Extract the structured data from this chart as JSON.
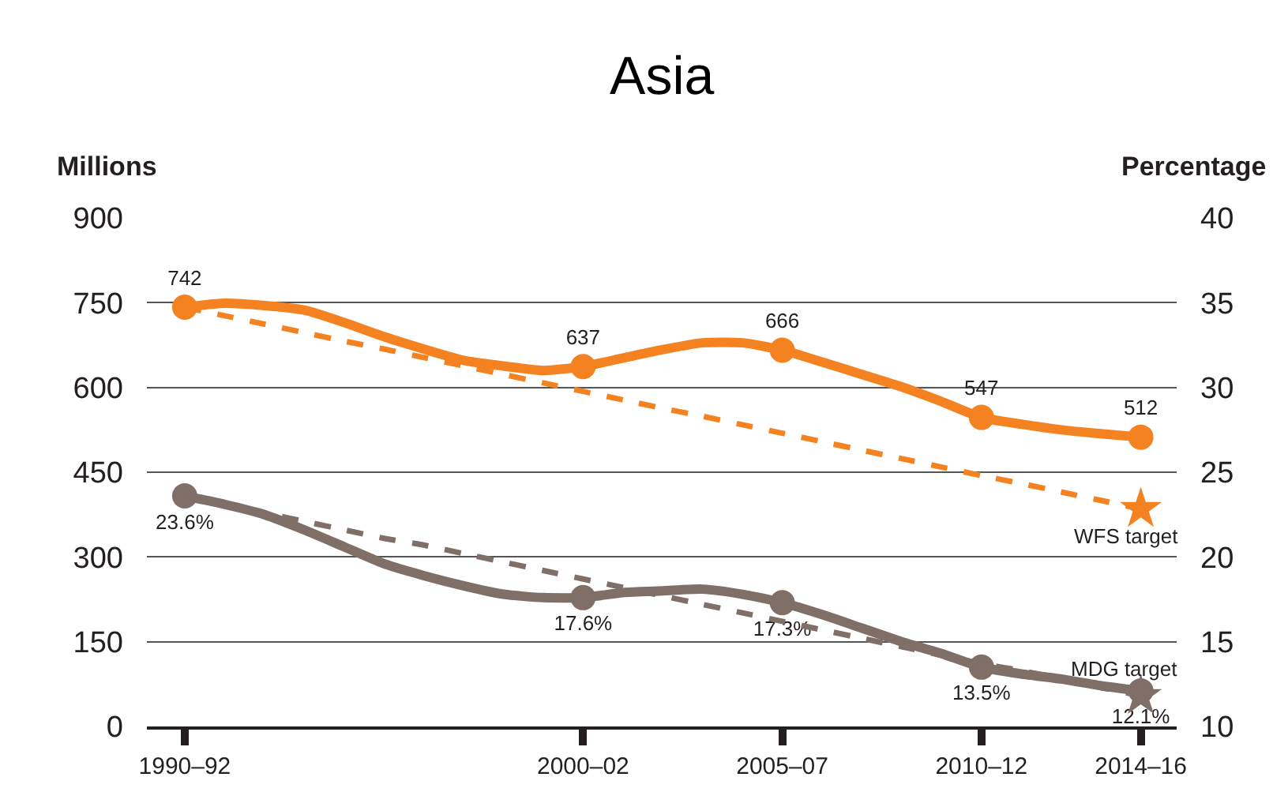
{
  "chart_data": {
    "type": "line",
    "title": "Asia",
    "ylabel": "Millions",
    "y2label": "Percentage",
    "categories": [
      "1990–92",
      null,
      null,
      null,
      null,
      null,
      null,
      null,
      null,
      null,
      "2000–02",
      null,
      null,
      null,
      null,
      "2005–07",
      null,
      null,
      null,
      null,
      "2010–12",
      null,
      null,
      null,
      "2014–16"
    ],
    "ylim": [
      0,
      900
    ],
    "yticks": [
      0,
      150,
      300,
      450,
      600,
      750,
      900
    ],
    "y2lim": [
      10,
      40
    ],
    "y2ticks": [
      10,
      15,
      20,
      25,
      30,
      35,
      40
    ],
    "grid": "y",
    "series": [
      {
        "type": "line",
        "color": "#f58220",
        "line_style": "solid",
        "marker": "none",
        "values": [
          742,
          749,
          745,
          737,
          715,
          690,
          668,
          648,
          638,
          630,
          637,
          652,
          667,
          679,
          679,
          666,
          645,
          623,
          601,
          575,
          547,
          535,
          525,
          518,
          512
        ]
      },
      {
        "type": "scatter",
        "color": "#f58220",
        "marker": "circle",
        "values": [
          742,
          null,
          null,
          null,
          null,
          null,
          null,
          null,
          null,
          null,
          637,
          null,
          null,
          null,
          null,
          666,
          null,
          null,
          null,
          null,
          547,
          null,
          null,
          null,
          512
        ],
        "value_labels": [
          "742",
          null,
          null,
          null,
          null,
          null,
          null,
          null,
          null,
          null,
          "637",
          null,
          null,
          null,
          null,
          "666",
          null,
          null,
          null,
          null,
          "547",
          null,
          null,
          null,
          "512"
        ]
      },
      {
        "type": "line",
        "name": "WFS target",
        "color": "#f58220",
        "line_style": "dashed",
        "marker": "none",
        "values": [
          742,
          727,
          712,
          697,
          682,
          668,
          653,
          638,
          623,
          608,
          593,
          578,
          563,
          549,
          534,
          519,
          504,
          489,
          474,
          459,
          444,
          430,
          415,
          400,
          385
        ]
      },
      {
        "type": "scatter",
        "color": "#f58220",
        "marker": "star",
        "values": [
          null,
          null,
          null,
          null,
          null,
          null,
          null,
          null,
          null,
          null,
          null,
          null,
          null,
          null,
          null,
          null,
          null,
          null,
          null,
          null,
          null,
          null,
          null,
          null,
          385
        ]
      },
      {
        "type": "line",
        "axis": "y2",
        "color": "#7f6f67",
        "line_style": "solid",
        "marker": "none",
        "values": [
          23.6,
          23.1,
          22.5,
          21.6,
          20.6,
          19.6,
          18.9,
          18.3,
          17.8,
          17.6,
          17.6,
          17.9,
          18.0,
          18.1,
          17.8,
          17.3,
          16.6,
          15.8,
          15.0,
          14.3,
          13.5,
          13.1,
          12.8,
          12.4,
          12.1
        ]
      },
      {
        "type": "scatter",
        "axis": "y2",
        "color": "#7f6f67",
        "marker": "circle",
        "values": [
          23.6,
          null,
          null,
          null,
          null,
          null,
          null,
          null,
          null,
          null,
          17.6,
          null,
          null,
          null,
          null,
          17.3,
          null,
          null,
          null,
          null,
          13.5,
          null,
          null,
          null,
          12.1
        ],
        "value_labels": [
          "23.6%",
          null,
          null,
          null,
          null,
          null,
          null,
          null,
          null,
          null,
          "17.6%",
          null,
          null,
          null,
          null,
          "17.3%",
          null,
          null,
          null,
          null,
          "13.5%",
          null,
          null,
          null,
          "12.1%"
        ]
      },
      {
        "type": "line",
        "axis": "y2",
        "name": "MDG target",
        "color": "#7f6f67",
        "line_style": "dashed",
        "marker": "none",
        "values": [
          23.6,
          23.1,
          22.6,
          22.1,
          21.6,
          21.1,
          20.7,
          20.2,
          19.7,
          19.2,
          18.7,
          18.2,
          17.7,
          17.2,
          16.7,
          16.2,
          15.7,
          15.2,
          14.7,
          14.2,
          13.7,
          13.3,
          12.8,
          12.3,
          11.8
        ]
      },
      {
        "type": "scatter",
        "axis": "y2",
        "color": "#7f6f67",
        "marker": "star",
        "values": [
          null,
          null,
          null,
          null,
          null,
          null,
          null,
          null,
          null,
          null,
          null,
          null,
          null,
          null,
          null,
          null,
          null,
          null,
          null,
          null,
          null,
          null,
          null,
          null,
          11.8
        ]
      }
    ]
  }
}
